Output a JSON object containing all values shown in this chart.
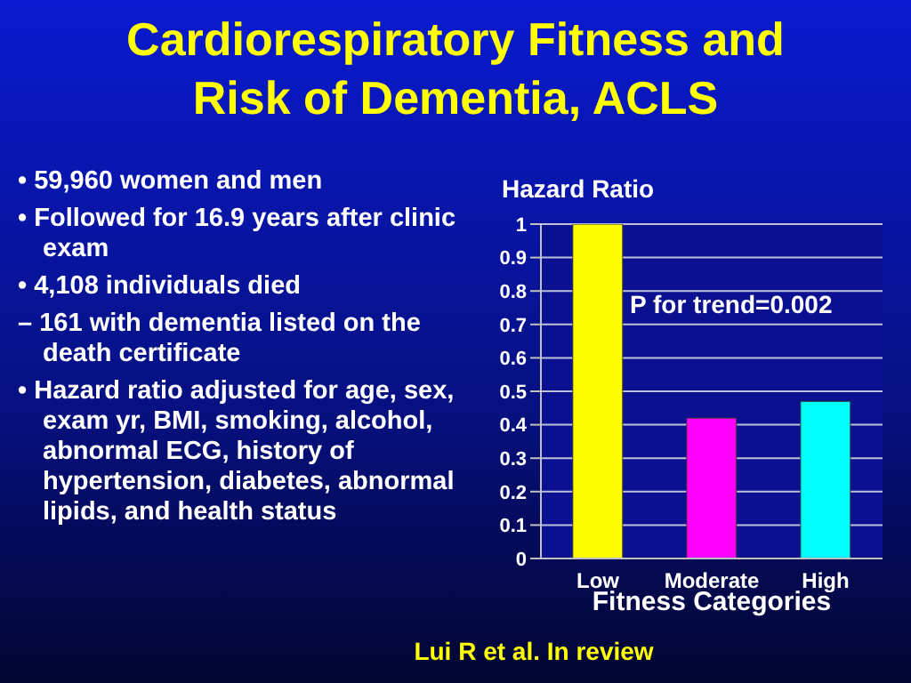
{
  "chart_data": {
    "type": "bar",
    "title": "Cardiorespiratory Fitness and Risk of Dementia, ACLS",
    "ylabel": "Hazard Ratio",
    "xlabel": "Fitness Categories",
    "categories": [
      "Low",
      "Moderate",
      "High"
    ],
    "values": [
      1.0,
      0.42,
      0.47
    ],
    "colors": [
      "#ffff00",
      "#ff00ff",
      "#00ffff"
    ],
    "ylim": [
      0,
      1
    ],
    "yticks": [
      0,
      0.1,
      0.2,
      0.3,
      0.4,
      0.5,
      0.6,
      0.7,
      0.8,
      0.9,
      1
    ],
    "grid": "y",
    "annotations": [
      "• 59,960 women and men",
      "• Followed for 16.9 years after clinic exam",
      "• 4,108 individuals died",
      "– 161 with dementia listed on the death certificate",
      "• Hazard ratio adjusted for age, sex, exam yr, BMI, smoking, alcohol, abnormal ECG, history of hypertension, diabetes, abnormal lipids, and health status",
      "P for trend=0.002",
      "Lui R et al. In review"
    ]
  }
}
